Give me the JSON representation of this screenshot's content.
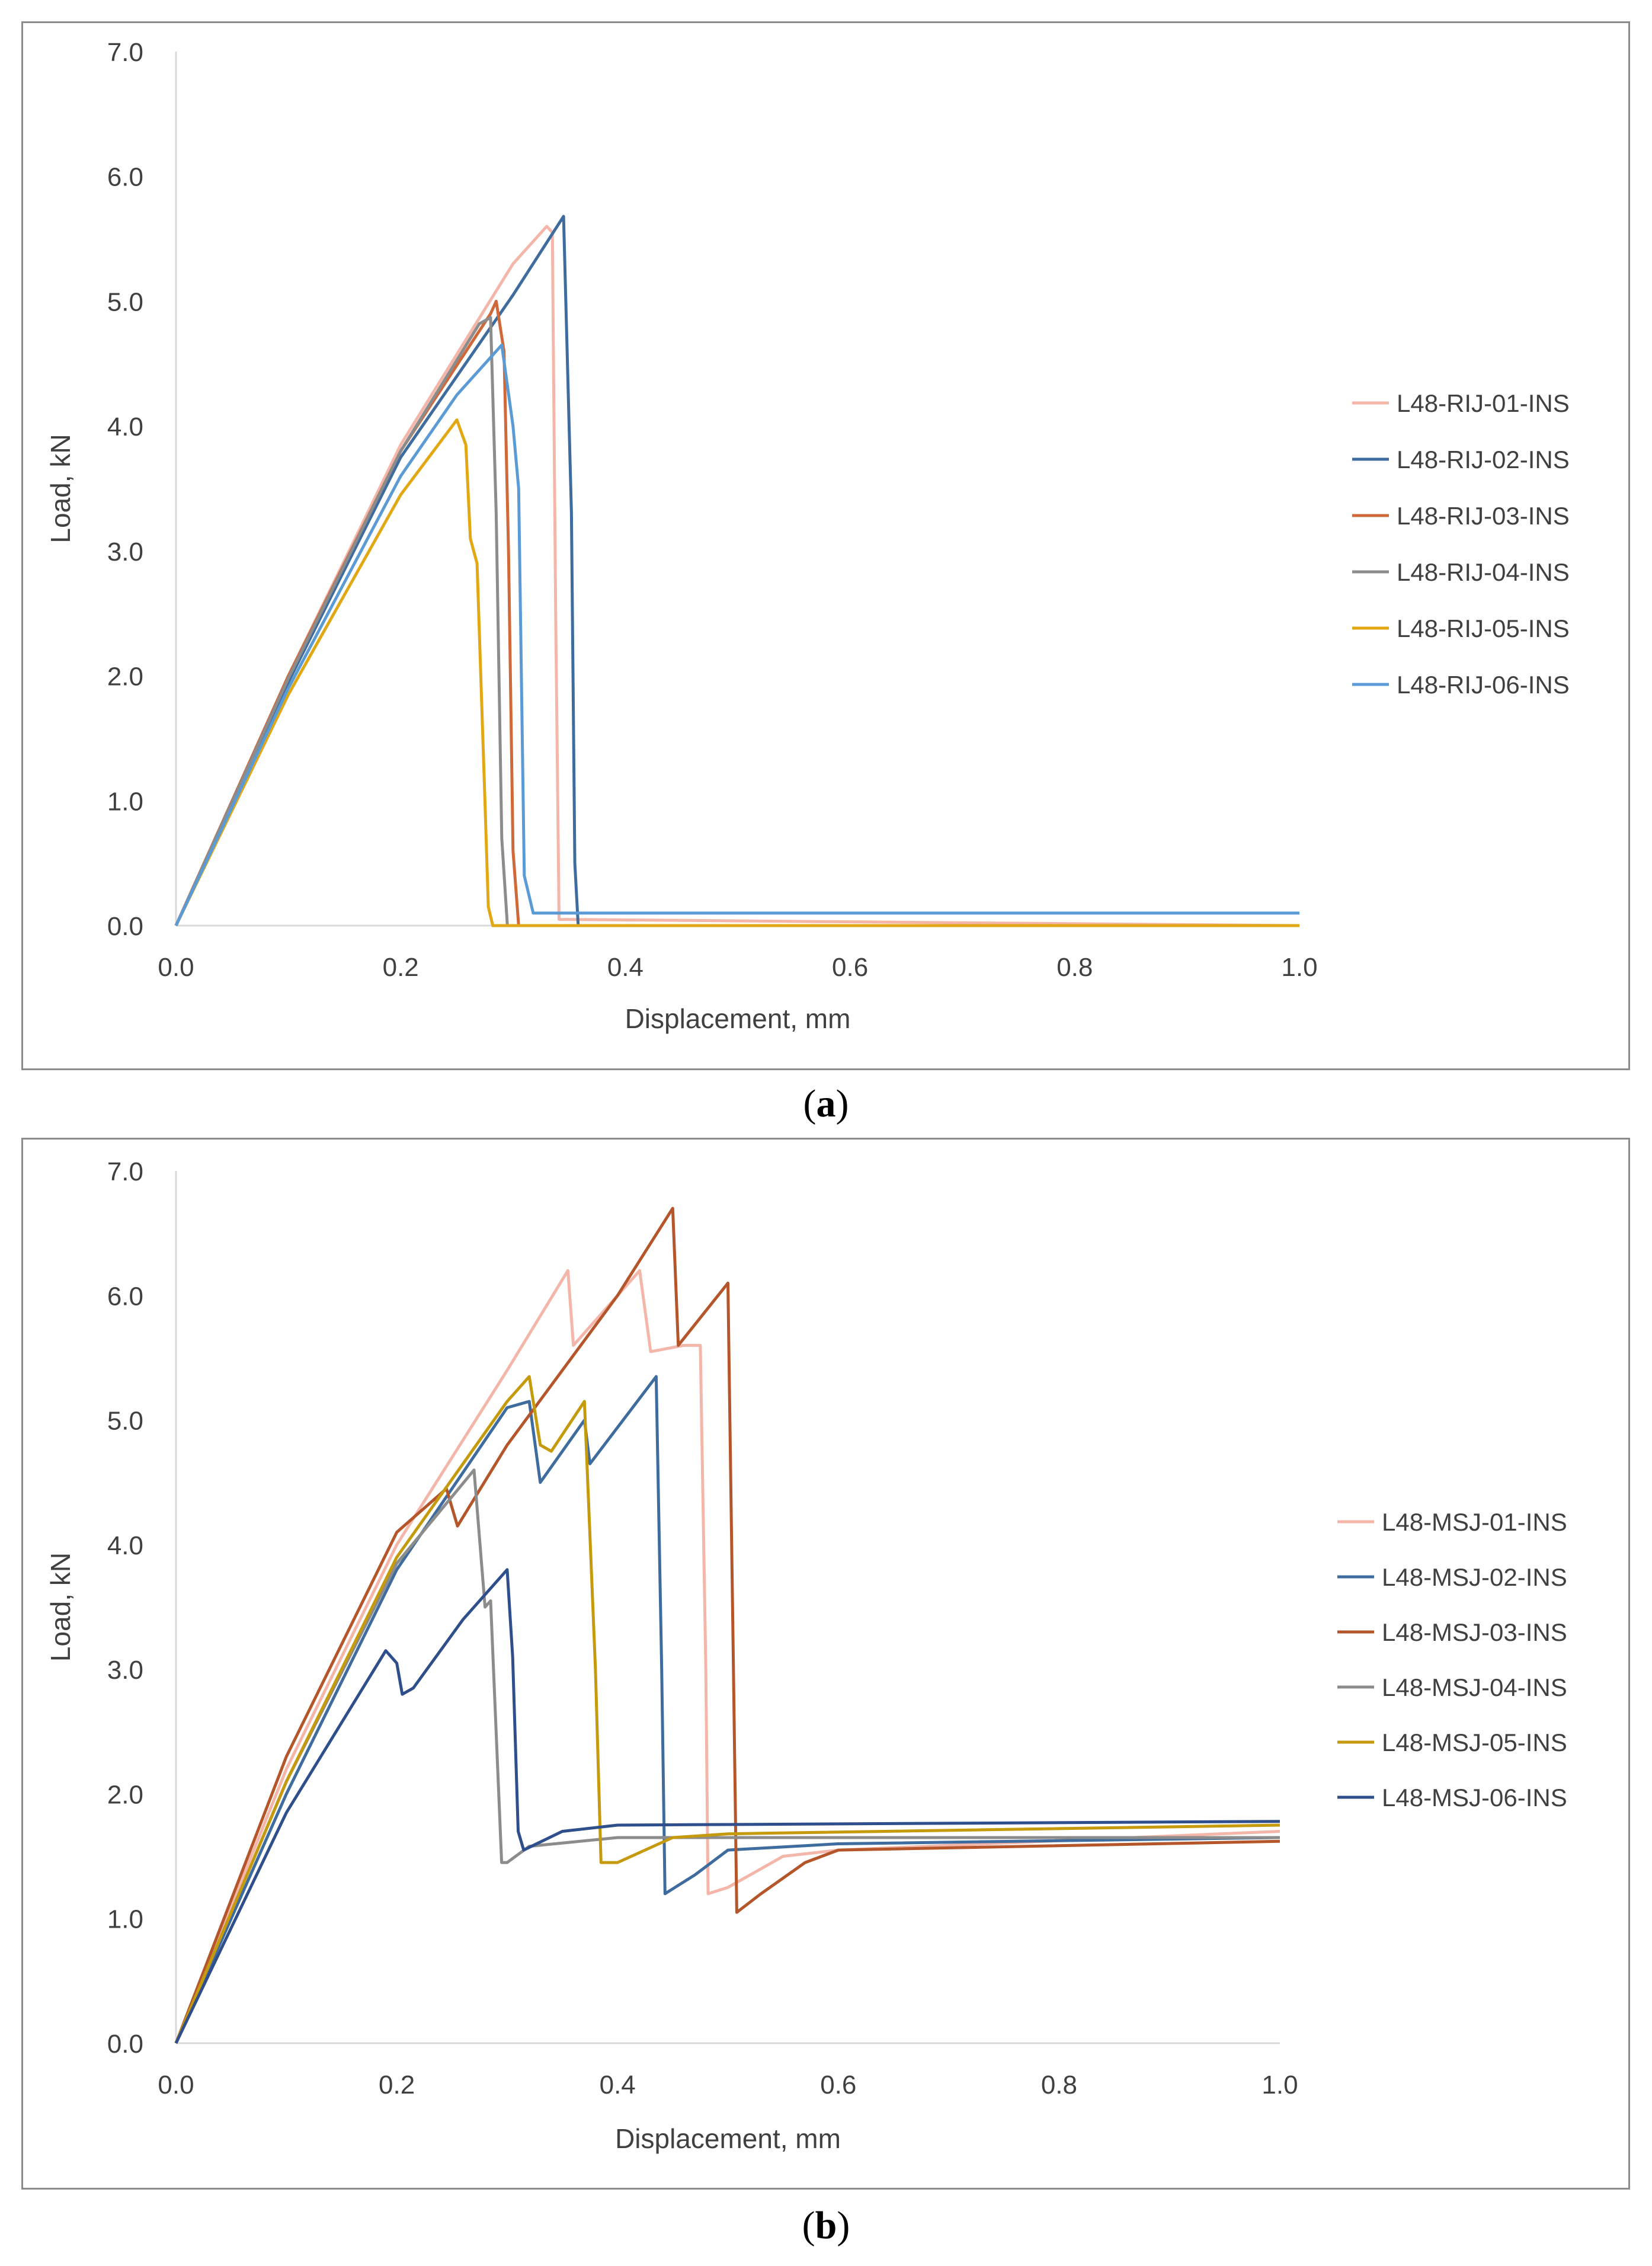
{
  "chart_data": [
    {
      "type": "line",
      "panel_label": "a",
      "xlabel": "Displacement, mm",
      "ylabel": "Load, kN",
      "xlim": [
        0,
        1.0
      ],
      "ylim": [
        0,
        7.0
      ],
      "x_ticks": [
        "0.0",
        "0.2",
        "0.4",
        "0.6",
        "0.8",
        "1.0"
      ],
      "y_ticks": [
        "0.0",
        "1.0",
        "2.0",
        "3.0",
        "4.0",
        "5.0",
        "6.0",
        "7.0"
      ],
      "grid": false,
      "legend_position": "right",
      "series": [
        {
          "name": "L48-RIJ-01-INS",
          "color": "#f4b6a8",
          "points": [
            [
              0,
              0
            ],
            [
              0.1,
              2.0
            ],
            [
              0.2,
              3.85
            ],
            [
              0.3,
              5.3
            ],
            [
              0.33,
              5.6
            ],
            [
              0.335,
              5.55
            ],
            [
              0.338,
              2.5
            ],
            [
              0.341,
              0.05
            ],
            [
              1.0,
              0.0
            ]
          ]
        },
        {
          "name": "L48-RIJ-02-INS",
          "color": "#3f6c9e",
          "points": [
            [
              0,
              0
            ],
            [
              0.1,
              1.95
            ],
            [
              0.2,
              3.75
            ],
            [
              0.3,
              5.05
            ],
            [
              0.345,
              5.68
            ],
            [
              0.352,
              3.3
            ],
            [
              0.355,
              0.5
            ],
            [
              0.358,
              0.0
            ],
            [
              1.0,
              0.0
            ]
          ]
        },
        {
          "name": "L48-RIJ-03-INS",
          "color": "#d0693a",
          "points": [
            [
              0,
              0
            ],
            [
              0.1,
              2.0
            ],
            [
              0.2,
              3.8
            ],
            [
              0.28,
              4.9
            ],
            [
              0.285,
              5.0
            ],
            [
              0.292,
              4.6
            ],
            [
              0.296,
              3.0
            ],
            [
              0.3,
              0.6
            ],
            [
              0.305,
              0.0
            ],
            [
              1.0,
              0.0
            ]
          ]
        },
        {
          "name": "L48-RIJ-04-INS",
          "color": "#8c8c8c",
          "points": [
            [
              0,
              0
            ],
            [
              0.1,
              1.98
            ],
            [
              0.2,
              3.8
            ],
            [
              0.27,
              4.82
            ],
            [
              0.28,
              4.87
            ],
            [
              0.285,
              3.3
            ],
            [
              0.29,
              0.7
            ],
            [
              0.295,
              0.0
            ],
            [
              1.0,
              0.0
            ]
          ]
        },
        {
          "name": "L48-RIJ-05-INS",
          "color": "#e1a813",
          "points": [
            [
              0,
              0
            ],
            [
              0.1,
              1.85
            ],
            [
              0.2,
              3.45
            ],
            [
              0.25,
              4.05
            ],
            [
              0.258,
              3.85
            ],
            [
              0.262,
              3.1
            ],
            [
              0.268,
              2.9
            ],
            [
              0.275,
              1.0
            ],
            [
              0.278,
              0.15
            ],
            [
              0.282,
              0.0
            ],
            [
              1.0,
              0.0
            ]
          ]
        },
        {
          "name": "L48-RIJ-06-INS",
          "color": "#5b9bd5",
          "points": [
            [
              0,
              0
            ],
            [
              0.1,
              1.9
            ],
            [
              0.2,
              3.6
            ],
            [
              0.25,
              4.25
            ],
            [
              0.29,
              4.65
            ],
            [
              0.3,
              4.0
            ],
            [
              0.305,
              3.5
            ],
            [
              0.31,
              0.4
            ],
            [
              0.318,
              0.1
            ],
            [
              1.0,
              0.1
            ]
          ]
        }
      ]
    },
    {
      "type": "line",
      "panel_label": "b",
      "xlabel": "Displacement, mm",
      "ylabel": "Load, kN",
      "xlim": [
        0,
        1.0
      ],
      "ylim": [
        0,
        7.0
      ],
      "x_ticks": [
        "0.0",
        "0.2",
        "0.4",
        "0.6",
        "0.8",
        "1.0"
      ],
      "y_ticks": [
        "0.0",
        "1.0",
        "2.0",
        "3.0",
        "4.0",
        "5.0",
        "6.0",
        "7.0"
      ],
      "grid": false,
      "legend_position": "right",
      "series": [
        {
          "name": "L48-MSJ-01-INS",
          "color": "#f4b6a8",
          "points": [
            [
              0,
              0
            ],
            [
              0.1,
              2.2
            ],
            [
              0.2,
              4.0
            ],
            [
              0.3,
              5.4
            ],
            [
              0.355,
              6.2
            ],
            [
              0.36,
              5.6
            ],
            [
              0.42,
              6.2
            ],
            [
              0.43,
              5.55
            ],
            [
              0.46,
              5.6
            ],
            [
              0.475,
              5.6
            ],
            [
              0.48,
              3.0
            ],
            [
              0.482,
              1.2
            ],
            [
              0.5,
              1.25
            ],
            [
              0.55,
              1.5
            ],
            [
              0.6,
              1.55
            ],
            [
              1.0,
              1.7
            ]
          ]
        },
        {
          "name": "L48-MSJ-02-INS",
          "color": "#3f6c9e",
          "points": [
            [
              0,
              0
            ],
            [
              0.1,
              2.0
            ],
            [
              0.2,
              3.8
            ],
            [
              0.3,
              5.1
            ],
            [
              0.32,
              5.15
            ],
            [
              0.33,
              4.5
            ],
            [
              0.37,
              5.0
            ],
            [
              0.375,
              4.65
            ],
            [
              0.435,
              5.35
            ],
            [
              0.44,
              3.0
            ],
            [
              0.443,
              1.2
            ],
            [
              0.47,
              1.35
            ],
            [
              0.5,
              1.55
            ],
            [
              0.6,
              1.6
            ],
            [
              1.0,
              1.65
            ]
          ]
        },
        {
          "name": "L48-MSJ-03-INS",
          "color": "#b5562a",
          "points": [
            [
              0,
              0
            ],
            [
              0.1,
              2.3
            ],
            [
              0.2,
              4.1
            ],
            [
              0.245,
              4.45
            ],
            [
              0.255,
              4.15
            ],
            [
              0.3,
              4.8
            ],
            [
              0.4,
              6.0
            ],
            [
              0.45,
              6.7
            ],
            [
              0.455,
              5.6
            ],
            [
              0.5,
              6.1
            ],
            [
              0.505,
              3.0
            ],
            [
              0.508,
              1.05
            ],
            [
              0.53,
              1.2
            ],
            [
              0.57,
              1.45
            ],
            [
              0.6,
              1.55
            ],
            [
              1.0,
              1.62
            ]
          ]
        },
        {
          "name": "L48-MSJ-04-INS",
          "color": "#8c8c8c",
          "points": [
            [
              0,
              0
            ],
            [
              0.1,
              2.1
            ],
            [
              0.2,
              3.85
            ],
            [
              0.27,
              4.6
            ],
            [
              0.28,
              3.5
            ],
            [
              0.285,
              3.55
            ],
            [
              0.29,
              2.5
            ],
            [
              0.295,
              1.45
            ],
            [
              0.3,
              1.45
            ],
            [
              0.32,
              1.58
            ],
            [
              0.4,
              1.65
            ],
            [
              1.0,
              1.65
            ]
          ]
        },
        {
          "name": "L48-MSJ-05-INS",
          "color": "#c59a0c",
          "points": [
            [
              0,
              0
            ],
            [
              0.1,
              2.1
            ],
            [
              0.2,
              3.9
            ],
            [
              0.3,
              5.15
            ],
            [
              0.32,
              5.35
            ],
            [
              0.33,
              4.8
            ],
            [
              0.34,
              4.75
            ],
            [
              0.37,
              5.15
            ],
            [
              0.38,
              3.0
            ],
            [
              0.385,
              1.45
            ],
            [
              0.4,
              1.45
            ],
            [
              0.45,
              1.65
            ],
            [
              0.5,
              1.68
            ],
            [
              1.0,
              1.75
            ]
          ]
        },
        {
          "name": "L48-MSJ-06-INS",
          "color": "#2f4f8c",
          "points": [
            [
              0,
              0
            ],
            [
              0.1,
              1.85
            ],
            [
              0.19,
              3.15
            ],
            [
              0.2,
              3.05
            ],
            [
              0.205,
              2.8
            ],
            [
              0.215,
              2.85
            ],
            [
              0.26,
              3.4
            ],
            [
              0.27,
              3.5
            ],
            [
              0.3,
              3.8
            ],
            [
              0.305,
              3.1
            ],
            [
              0.31,
              1.7
            ],
            [
              0.315,
              1.55
            ],
            [
              0.35,
              1.7
            ],
            [
              0.4,
              1.75
            ],
            [
              1.0,
              1.78
            ]
          ]
        }
      ]
    }
  ]
}
